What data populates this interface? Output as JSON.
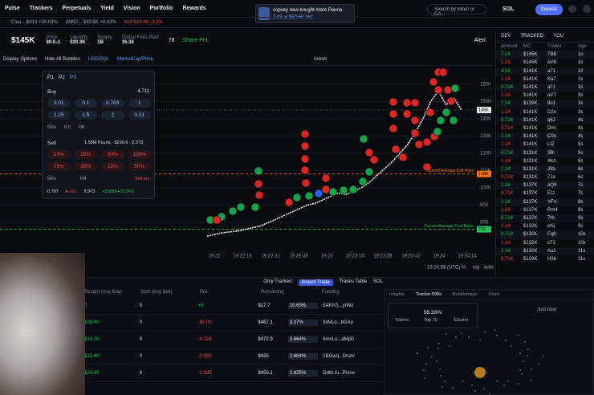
{
  "nav": {
    "items": [
      "Pulse",
      "Trackers",
      "Perpetuals",
      "Yield",
      "Vision",
      "Portfolio",
      "Rewards"
    ],
    "popup_title": "copsey new bought more Pouria",
    "popup_sub": "2.83 at $50.6K MC",
    "search": "Search by token or CA...",
    "sol": "SOL",
    "deposit": "Deposit"
  },
  "ticker": [
    "Clau... $413 +30.09%",
    "AWE/... $40.5K +8.43%",
    "test $10.4K -3.2%"
  ],
  "token": {
    "mc": "$145K",
    "stats": [
      {
        "label": "Price",
        "value": "$0.0₃1"
      },
      {
        "label": "Liquidity",
        "value": "$30.3K"
      },
      {
        "label": "Supply",
        "value": "1B"
      },
      {
        "label": "Global Fees Paid",
        "value": "16.38"
      }
    ],
    "holders": "78",
    "share": "Share PnL",
    "alert": "Alert"
  },
  "toolbar": [
    "Display Options",
    "Hide All Bubbles",
    "USD/SOL",
    "MarketCap/Price",
    "Axiom"
  ],
  "chart_data": {
    "type": "line",
    "color": "#f2f2f2",
    "values": [
      72000,
      73000,
      74000,
      74500,
      75000,
      76000,
      77000,
      78000,
      80000,
      82000,
      84000,
      86000,
      88000,
      90000,
      91000,
      93000,
      95000,
      97000,
      96000,
      98000,
      100000,
      103000,
      107000,
      111000,
      115000,
      120000,
      125000,
      132000,
      140000,
      150000,
      156000,
      148000,
      152000,
      145000
    ],
    "ylim": [
      70000,
      165000
    ],
    "yticks": [
      {
        "value": 160000,
        "label": "160K"
      },
      {
        "value": 150000,
        "label": "150K"
      },
      {
        "value": 140000,
        "label": "140K"
      },
      {
        "value": 130000,
        "label": "130K"
      },
      {
        "value": 120000,
        "label": "120K"
      },
      {
        "value": 110000,
        "label": "110K"
      },
      {
        "value": 100000,
        "label": "100K"
      },
      {
        "value": 90000,
        "label": "90K"
      },
      {
        "value": 80000,
        "label": "80K"
      }
    ],
    "x_labels": [
      "19:22",
      "19:22:16",
      "19:22:31",
      "19:22:46",
      "19:23",
      "19:23:14",
      "19:23:28",
      "19:23:42",
      "19:24",
      "19:24:14"
    ],
    "current": {
      "value": 145000,
      "label": "145K"
    },
    "ref_lines": [
      {
        "name": "Current Average Exit Price",
        "value": 108000,
        "label": "108K",
        "color": "#f97316"
      },
      {
        "name": "Current Average Cost Basis",
        "value": 76000,
        "label": "76K",
        "color": "#22c55e"
      }
    ],
    "time": "19:24:58 (UTC)",
    "controls": [
      "%",
      "log",
      "auto"
    ]
  },
  "trade_panel": {
    "presets": [
      "P1",
      "P2",
      "P3"
    ],
    "buy": "Buy",
    "balance": "4.711",
    "buy_amounts": [
      "0.01",
      "0.1",
      "0.789",
      "1",
      "1.25",
      "1.5",
      "2",
      "0.01"
    ],
    "buy_settings": [
      "50%",
      "0.0",
      "Off"
    ],
    "sell": "Sell",
    "sell_info": "1.58M Pouria · $226.6 · 2.573",
    "sell_pcts": [
      "10%",
      "25%",
      "50%",
      "100%",
      "75%",
      "30%",
      "13%",
      "50%"
    ],
    "sell_settings": [
      "50%",
      "Off"
    ],
    "sell_init": "Sell Init",
    "footer": [
      "0.787",
      "4.161",
      "2.573",
      "+$.828(+75.8%)"
    ]
  },
  "trades": {
    "tabs": [
      "DEV",
      "TRACKED",
      "YOU"
    ],
    "headers": [
      "Amount",
      "MC",
      "Trader",
      "Age"
    ],
    "rows": [
      [
        "7.14",
        "$145K",
        "TB5",
        "1s"
      ],
      [
        "1.14",
        "$145K",
        "aVK",
        "1s"
      ],
      [
        "4.14",
        "$141K",
        "a71",
        "2s"
      ],
      [
        "1.14",
        "$141K",
        "Ka7",
        "2s"
      ],
      [
        "0.714",
        "$141K",
        "a71",
        "2s"
      ],
      [
        "1.14",
        "$141K",
        "aVT",
        "3s"
      ],
      [
        "7.14",
        "$139K",
        "9o1",
        "3s"
      ],
      [
        "1.14",
        "$141K",
        "D2n",
        "3s"
      ],
      [
        "0.714",
        "$141K",
        "q6J",
        "4s"
      ],
      [
        "0.714",
        "$141K",
        "Dmi",
        "4s"
      ],
      [
        "1.14",
        "$141K",
        "C0o",
        "4s"
      ],
      [
        "1.14",
        "$141K",
        "LtZ",
        "5s"
      ],
      [
        "0.714",
        "$131K",
        "3Bi",
        "5s"
      ],
      [
        "1.14",
        "$131K",
        "XkA",
        "6s"
      ],
      [
        "1.14",
        "$131K",
        "J9b",
        "6s"
      ],
      [
        "0.714",
        "$131K",
        "7Ja",
        "6s"
      ],
      [
        "1.14",
        "$137K",
        "aQ9",
        "7s"
      ],
      [
        "0.714",
        "$137K",
        "E1t",
        "7s"
      ],
      [
        "1.14",
        "$137K",
        "YFV",
        "8s"
      ],
      [
        "1.14",
        "$137K",
        "Rm4",
        "8s"
      ],
      [
        "0.714",
        "$137K",
        "7rb",
        "9s"
      ],
      [
        "1.14",
        "$132K",
        "eNj",
        "9s"
      ],
      [
        "0.714",
        "$132K",
        "Fq8",
        "10s"
      ],
      [
        "1.14",
        "$132K",
        "zT2",
        "10s"
      ],
      [
        "1.14",
        "$132K",
        "Aa1",
        "11s"
      ],
      [
        "0.714",
        "$129K",
        "H3k",
        "11s"
      ]
    ],
    "row_colors": [
      "#22c55e",
      "#ef4444",
      "#22c55e",
      "#ef4444",
      "#22c55e",
      "#ef4444",
      "#22c55e",
      "#ef4444",
      "#22c55e",
      "#ef4444",
      "#22c55e",
      "#ef4444",
      "#22c55e",
      "#ef4444",
      "#22c55e",
      "#ef4444",
      "#22c55e",
      "#ef4444",
      "#22c55e",
      "#ef4444",
      "#22c55e",
      "#ef4444",
      "#22c55e",
      "#ef4444",
      "#22c55e",
      "#ef4444"
    ]
  },
  "positions": {
    "buttons": [
      "Only Tracked",
      "Instant Trade",
      "Trades Table",
      "SOL"
    ],
    "headers": [
      "Bought (Avg Buy)",
      "Sold (Avg Sell)",
      "PnL",
      "Remaining",
      "Funding"
    ],
    "rows": [
      [
        "0",
        "0",
        "+0",
        "$17.7",
        "10.65%",
        "8AKh7j...yrWz"
      ],
      [
        "$28.40",
        "0",
        "-$0.00",
        "$467.1",
        "3.37%",
        "9dVLo...bGAo"
      ],
      [
        "$24.20",
        "0",
        "-4.324",
        "$472.9",
        "2.664%",
        "6mvLo...aMpD"
      ],
      [
        "$23.40",
        "0",
        "-3.069",
        "$423",
        "2.664%",
        "2BGwq...DnaV"
      ],
      [
        "$23.40",
        "0",
        "-2.085",
        "$450.1",
        "2.425%",
        "DdM.Ai...PUne"
      ]
    ]
  },
  "insights": {
    "tabs": [
      "Insights",
      "Tracker 500s",
      "Bubblemaps",
      "Chart"
    ],
    "just_now": "Just now",
    "stats": [
      "Tokens",
      "95.33%",
      "Top 70",
      "Cluster"
    ]
  }
}
